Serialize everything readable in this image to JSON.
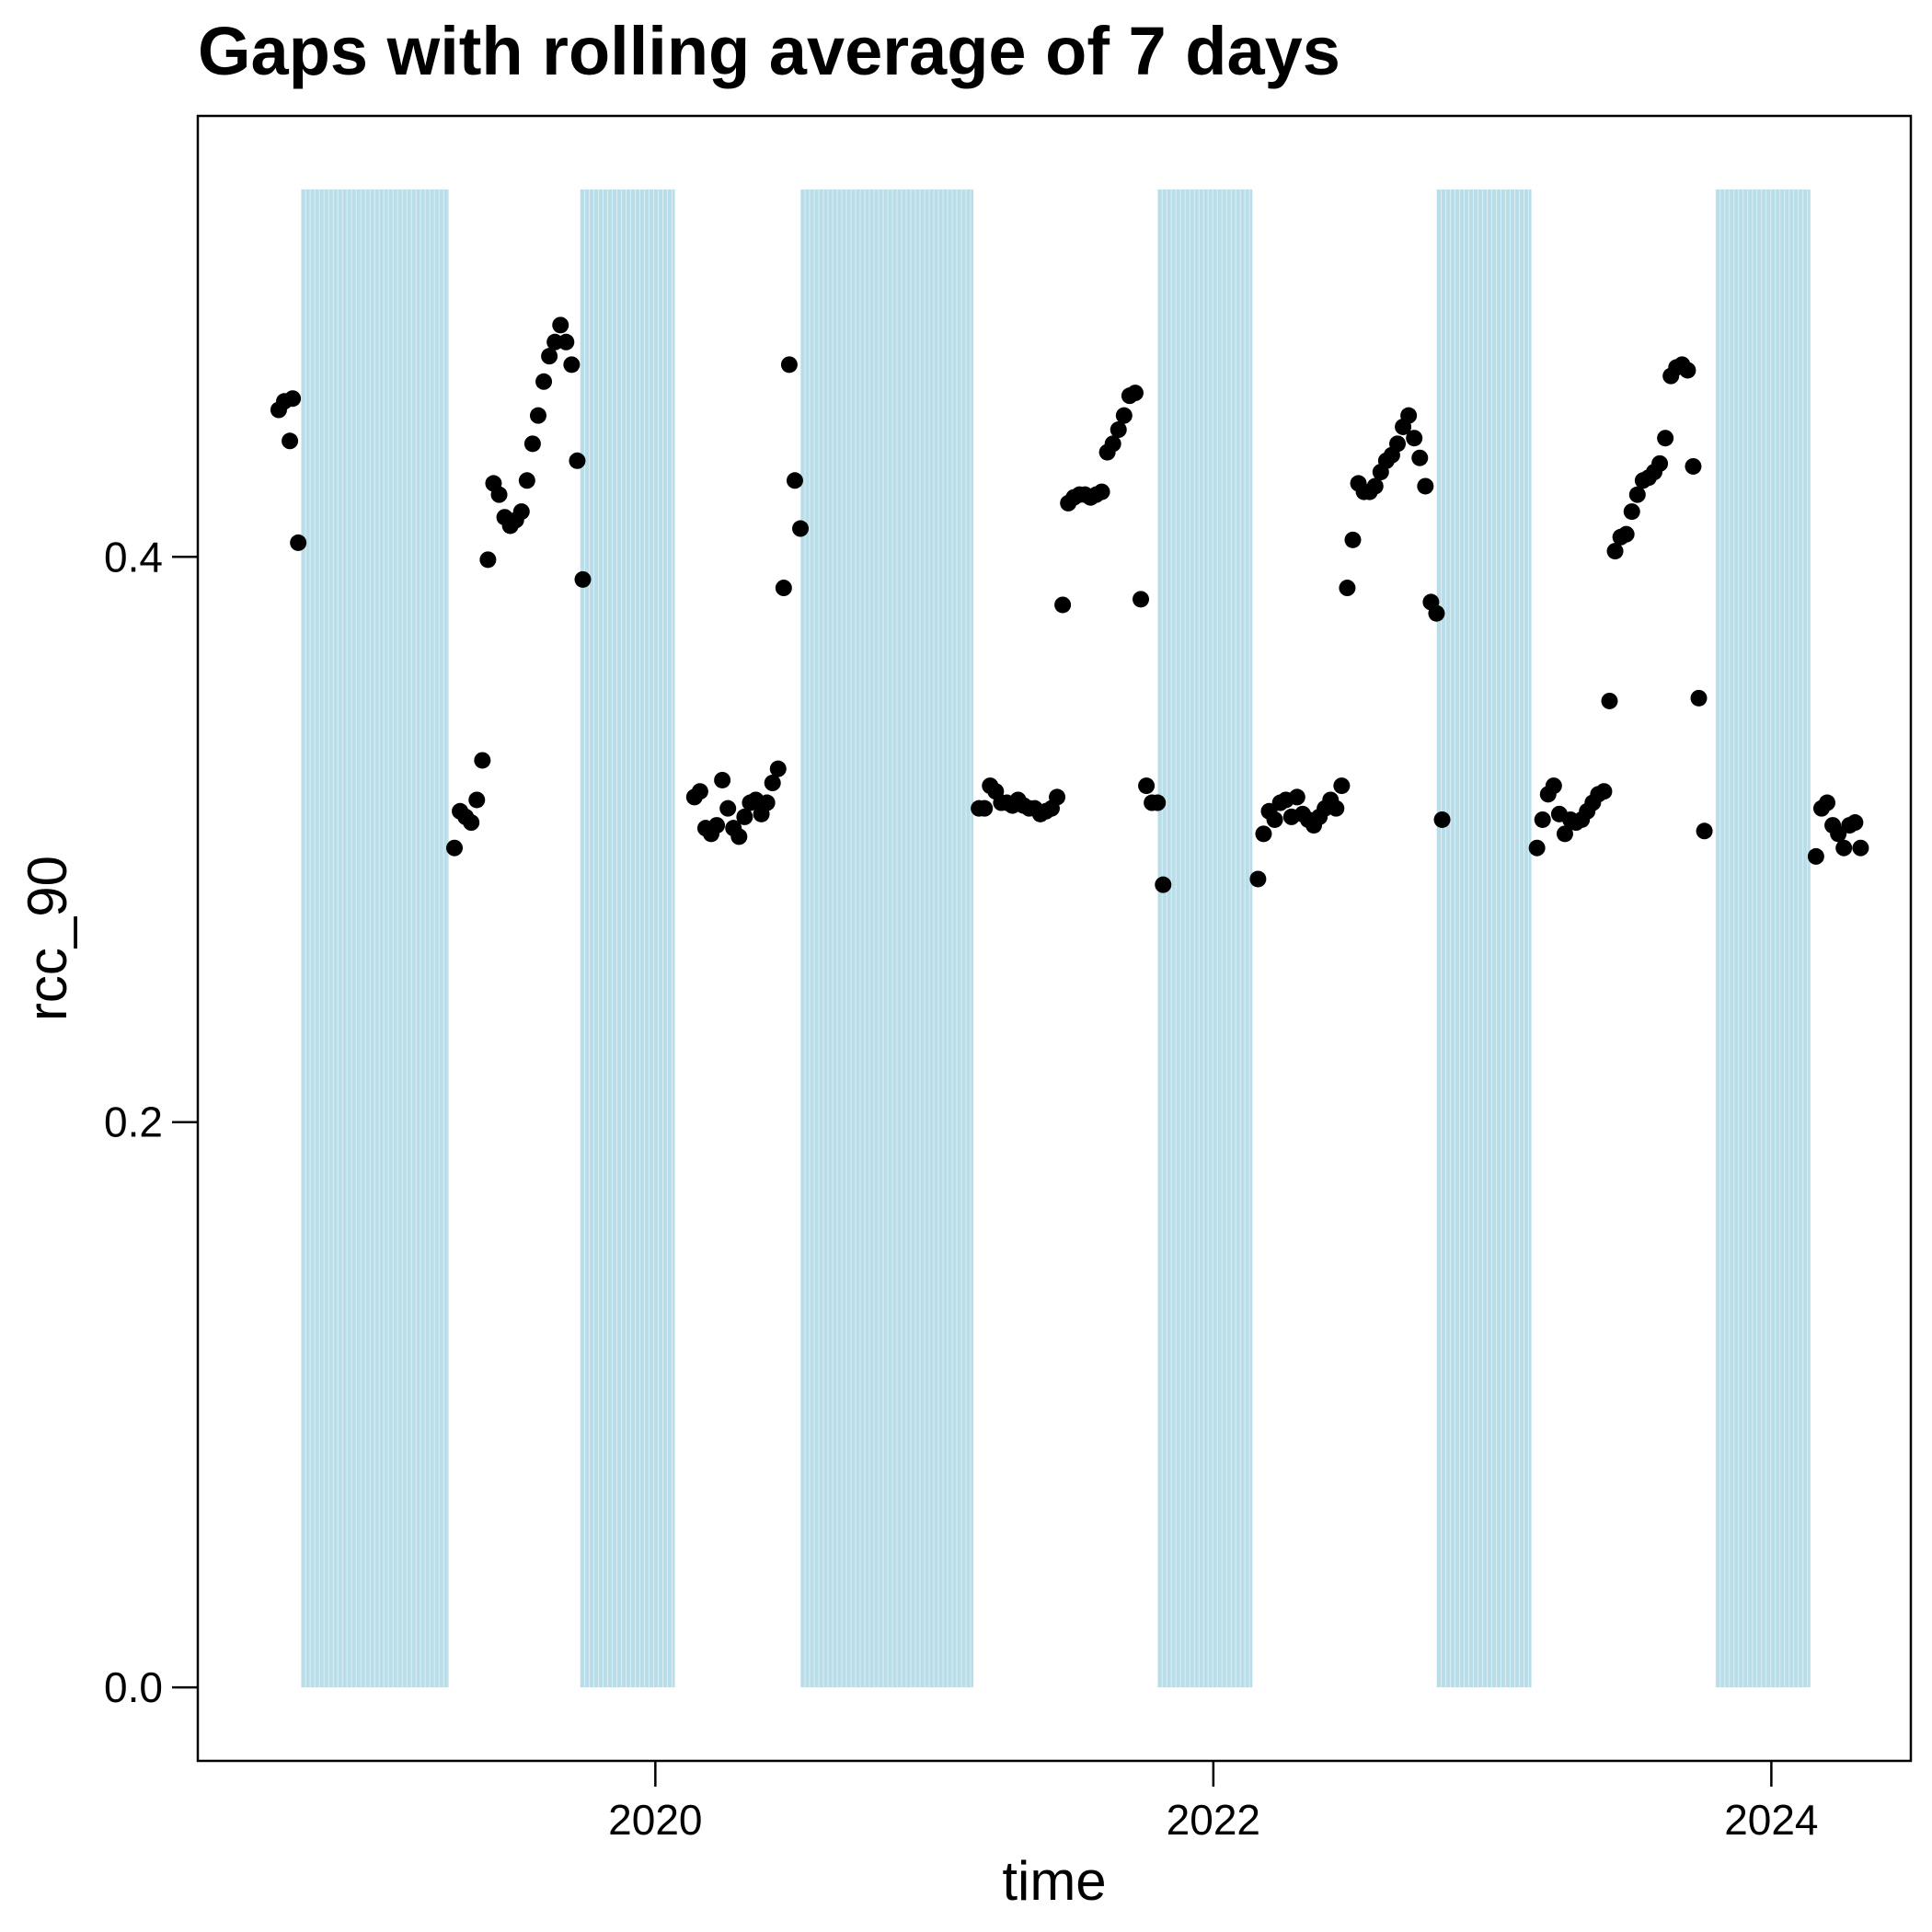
{
  "chart_data": {
    "type": "scatter",
    "title": "Gaps with rolling average of 7 days",
    "xlabel": "time",
    "ylabel": "rcc_90",
    "x_ticks": [
      {
        "value": 2020,
        "label": "2020"
      },
      {
        "value": 2022,
        "label": "2022"
      },
      {
        "value": 2024,
        "label": "2024"
      }
    ],
    "y_ticks": [
      {
        "value": 0.0,
        "label": "0.0"
      },
      {
        "value": 0.2,
        "label": "0.2"
      },
      {
        "value": 0.4,
        "label": "0.4"
      }
    ],
    "xlim": [
      2018.36,
      2024.5
    ],
    "ylim": [
      -0.026,
      0.556
    ],
    "grid": false,
    "gap_color": "#add8e6",
    "point_color": "#000000",
    "gaps": [
      {
        "start": 2018.73,
        "end": 2019.26,
        "ymin": 0.0,
        "ymax": 0.53
      },
      {
        "start": 2019.73,
        "end": 2020.07,
        "ymin": 0.0,
        "ymax": 0.53
      },
      {
        "start": 2020.52,
        "end": 2021.14,
        "ymin": 0.0,
        "ymax": 0.53
      },
      {
        "start": 2021.8,
        "end": 2022.14,
        "ymin": 0.0,
        "ymax": 0.53
      },
      {
        "start": 2022.8,
        "end": 2023.14,
        "ymin": 0.0,
        "ymax": 0.53
      },
      {
        "start": 2023.8,
        "end": 2024.14,
        "ymin": 0.0,
        "ymax": 0.53
      }
    ],
    "points": [
      {
        "x": 2018.65,
        "y": 0.452
      },
      {
        "x": 2018.67,
        "y": 0.455
      },
      {
        "x": 2018.69,
        "y": 0.441
      },
      {
        "x": 2018.7,
        "y": 0.456
      },
      {
        "x": 2018.72,
        "y": 0.405
      },
      {
        "x": 2019.28,
        "y": 0.297
      },
      {
        "x": 2019.3,
        "y": 0.31
      },
      {
        "x": 2019.32,
        "y": 0.308
      },
      {
        "x": 2019.34,
        "y": 0.306
      },
      {
        "x": 2019.36,
        "y": 0.314
      },
      {
        "x": 2019.38,
        "y": 0.328
      },
      {
        "x": 2019.4,
        "y": 0.399
      },
      {
        "x": 2019.42,
        "y": 0.426
      },
      {
        "x": 2019.44,
        "y": 0.422
      },
      {
        "x": 2019.46,
        "y": 0.414
      },
      {
        "x": 2019.48,
        "y": 0.411
      },
      {
        "x": 2019.5,
        "y": 0.413
      },
      {
        "x": 2019.52,
        "y": 0.416
      },
      {
        "x": 2019.54,
        "y": 0.427
      },
      {
        "x": 2019.56,
        "y": 0.44
      },
      {
        "x": 2019.58,
        "y": 0.45
      },
      {
        "x": 2019.6,
        "y": 0.462
      },
      {
        "x": 2019.62,
        "y": 0.471
      },
      {
        "x": 2019.64,
        "y": 0.476
      },
      {
        "x": 2019.66,
        "y": 0.482
      },
      {
        "x": 2019.68,
        "y": 0.476
      },
      {
        "x": 2019.7,
        "y": 0.468
      },
      {
        "x": 2019.72,
        "y": 0.434
      },
      {
        "x": 2019.74,
        "y": 0.392
      },
      {
        "x": 2020.14,
        "y": 0.315
      },
      {
        "x": 2020.16,
        "y": 0.317
      },
      {
        "x": 2020.18,
        "y": 0.304
      },
      {
        "x": 2020.2,
        "y": 0.302
      },
      {
        "x": 2020.22,
        "y": 0.305
      },
      {
        "x": 2020.24,
        "y": 0.321
      },
      {
        "x": 2020.26,
        "y": 0.311
      },
      {
        "x": 2020.28,
        "y": 0.304
      },
      {
        "x": 2020.3,
        "y": 0.301
      },
      {
        "x": 2020.32,
        "y": 0.308
      },
      {
        "x": 2020.34,
        "y": 0.313
      },
      {
        "x": 2020.36,
        "y": 0.314
      },
      {
        "x": 2020.38,
        "y": 0.309
      },
      {
        "x": 2020.4,
        "y": 0.313
      },
      {
        "x": 2020.42,
        "y": 0.32
      },
      {
        "x": 2020.44,
        "y": 0.325
      },
      {
        "x": 2020.46,
        "y": 0.389
      },
      {
        "x": 2020.48,
        "y": 0.468
      },
      {
        "x": 2020.5,
        "y": 0.427
      },
      {
        "x": 2020.52,
        "y": 0.41
      },
      {
        "x": 2021.16,
        "y": 0.311
      },
      {
        "x": 2021.18,
        "y": 0.311
      },
      {
        "x": 2021.2,
        "y": 0.319
      },
      {
        "x": 2021.22,
        "y": 0.317
      },
      {
        "x": 2021.24,
        "y": 0.313
      },
      {
        "x": 2021.26,
        "y": 0.313
      },
      {
        "x": 2021.28,
        "y": 0.312
      },
      {
        "x": 2021.3,
        "y": 0.314
      },
      {
        "x": 2021.32,
        "y": 0.312
      },
      {
        "x": 2021.34,
        "y": 0.311
      },
      {
        "x": 2021.36,
        "y": 0.311
      },
      {
        "x": 2021.38,
        "y": 0.309
      },
      {
        "x": 2021.4,
        "y": 0.31
      },
      {
        "x": 2021.42,
        "y": 0.311
      },
      {
        "x": 2021.44,
        "y": 0.315
      },
      {
        "x": 2021.46,
        "y": 0.383
      },
      {
        "x": 2021.48,
        "y": 0.419
      },
      {
        "x": 2021.5,
        "y": 0.421
      },
      {
        "x": 2021.52,
        "y": 0.422
      },
      {
        "x": 2021.54,
        "y": 0.422
      },
      {
        "x": 2021.56,
        "y": 0.421
      },
      {
        "x": 2021.58,
        "y": 0.422
      },
      {
        "x": 2021.6,
        "y": 0.423
      },
      {
        "x": 2021.62,
        "y": 0.437
      },
      {
        "x": 2021.64,
        "y": 0.44
      },
      {
        "x": 2021.66,
        "y": 0.445
      },
      {
        "x": 2021.68,
        "y": 0.45
      },
      {
        "x": 2021.7,
        "y": 0.457
      },
      {
        "x": 2021.72,
        "y": 0.458
      },
      {
        "x": 2021.74,
        "y": 0.385
      },
      {
        "x": 2021.76,
        "y": 0.319
      },
      {
        "x": 2021.78,
        "y": 0.313
      },
      {
        "x": 2021.8,
        "y": 0.313
      },
      {
        "x": 2021.82,
        "y": 0.284
      },
      {
        "x": 2022.16,
        "y": 0.286
      },
      {
        "x": 2022.18,
        "y": 0.302
      },
      {
        "x": 2022.2,
        "y": 0.31
      },
      {
        "x": 2022.22,
        "y": 0.307
      },
      {
        "x": 2022.24,
        "y": 0.313
      },
      {
        "x": 2022.26,
        "y": 0.314
      },
      {
        "x": 2022.28,
        "y": 0.308
      },
      {
        "x": 2022.3,
        "y": 0.315
      },
      {
        "x": 2022.32,
        "y": 0.309
      },
      {
        "x": 2022.34,
        "y": 0.307
      },
      {
        "x": 2022.36,
        "y": 0.305
      },
      {
        "x": 2022.38,
        "y": 0.308
      },
      {
        "x": 2022.4,
        "y": 0.311
      },
      {
        "x": 2022.42,
        "y": 0.314
      },
      {
        "x": 2022.44,
        "y": 0.311
      },
      {
        "x": 2022.46,
        "y": 0.319
      },
      {
        "x": 2022.48,
        "y": 0.389
      },
      {
        "x": 2022.5,
        "y": 0.406
      },
      {
        "x": 2022.52,
        "y": 0.426
      },
      {
        "x": 2022.54,
        "y": 0.423
      },
      {
        "x": 2022.56,
        "y": 0.423
      },
      {
        "x": 2022.58,
        "y": 0.425
      },
      {
        "x": 2022.6,
        "y": 0.43
      },
      {
        "x": 2022.62,
        "y": 0.434
      },
      {
        "x": 2022.64,
        "y": 0.436
      },
      {
        "x": 2022.66,
        "y": 0.44
      },
      {
        "x": 2022.68,
        "y": 0.446
      },
      {
        "x": 2022.7,
        "y": 0.45
      },
      {
        "x": 2022.72,
        "y": 0.442
      },
      {
        "x": 2022.74,
        "y": 0.435
      },
      {
        "x": 2022.76,
        "y": 0.425
      },
      {
        "x": 2022.78,
        "y": 0.384
      },
      {
        "x": 2022.8,
        "y": 0.38
      },
      {
        "x": 2022.82,
        "y": 0.307
      },
      {
        "x": 2023.16,
        "y": 0.297
      },
      {
        "x": 2023.18,
        "y": 0.307
      },
      {
        "x": 2023.2,
        "y": 0.316
      },
      {
        "x": 2023.22,
        "y": 0.319
      },
      {
        "x": 2023.24,
        "y": 0.309
      },
      {
        "x": 2023.26,
        "y": 0.302
      },
      {
        "x": 2023.28,
        "y": 0.307
      },
      {
        "x": 2023.3,
        "y": 0.306
      },
      {
        "x": 2023.32,
        "y": 0.307
      },
      {
        "x": 2023.34,
        "y": 0.31
      },
      {
        "x": 2023.36,
        "y": 0.313
      },
      {
        "x": 2023.38,
        "y": 0.316
      },
      {
        "x": 2023.4,
        "y": 0.317
      },
      {
        "x": 2023.42,
        "y": 0.349
      },
      {
        "x": 2023.44,
        "y": 0.402
      },
      {
        "x": 2023.46,
        "y": 0.407
      },
      {
        "x": 2023.48,
        "y": 0.408
      },
      {
        "x": 2023.5,
        "y": 0.416
      },
      {
        "x": 2023.52,
        "y": 0.422
      },
      {
        "x": 2023.54,
        "y": 0.427
      },
      {
        "x": 2023.56,
        "y": 0.428
      },
      {
        "x": 2023.58,
        "y": 0.43
      },
      {
        "x": 2023.6,
        "y": 0.433
      },
      {
        "x": 2023.62,
        "y": 0.442
      },
      {
        "x": 2023.64,
        "y": 0.464
      },
      {
        "x": 2023.66,
        "y": 0.467
      },
      {
        "x": 2023.68,
        "y": 0.468
      },
      {
        "x": 2023.7,
        "y": 0.466
      },
      {
        "x": 2023.72,
        "y": 0.432
      },
      {
        "x": 2023.74,
        "y": 0.35
      },
      {
        "x": 2023.76,
        "y": 0.303
      },
      {
        "x": 2024.16,
        "y": 0.294
      },
      {
        "x": 2024.18,
        "y": 0.311
      },
      {
        "x": 2024.2,
        "y": 0.313
      },
      {
        "x": 2024.22,
        "y": 0.305
      },
      {
        "x": 2024.24,
        "y": 0.302
      },
      {
        "x": 2024.26,
        "y": 0.297
      },
      {
        "x": 2024.28,
        "y": 0.305
      },
      {
        "x": 2024.3,
        "y": 0.306
      },
      {
        "x": 2024.32,
        "y": 0.297
      }
    ]
  }
}
